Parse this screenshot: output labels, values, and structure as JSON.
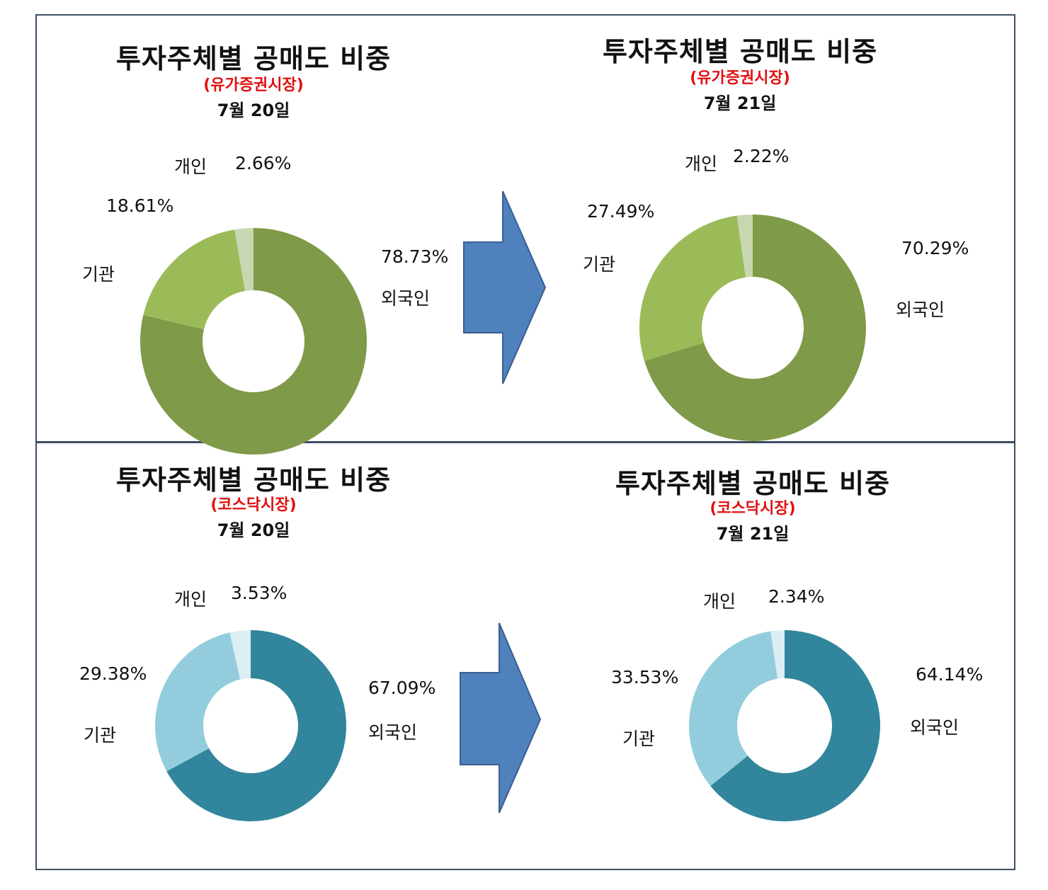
{
  "chart_data": [
    {
      "type": "pie",
      "title": "투자주체별 공매도 비중",
      "subtitle": "(유가증권시장)",
      "date": "7월 20일",
      "categories": [
        "외국인",
        "기관",
        "개인"
      ],
      "values": [
        78.73,
        18.61,
        2.66
      ],
      "value_labels": [
        "78.73%",
        "18.61%",
        "2.66%"
      ],
      "colors": [
        "#7f9a48",
        "#9bbb59",
        "#c7d7b0"
      ]
    },
    {
      "type": "pie",
      "title": "투자주체별 공매도 비중",
      "subtitle": "(유가증권시장)",
      "date": "7월 21일",
      "categories": [
        "외국인",
        "기관",
        "개인"
      ],
      "values": [
        70.29,
        27.49,
        2.22
      ],
      "value_labels": [
        "70.29%",
        "27.49%",
        "2.22%"
      ],
      "colors": [
        "#7f9a48",
        "#9bbb59",
        "#c7d7b0"
      ]
    },
    {
      "type": "pie",
      "title": "투자주체별 공매도 비중",
      "subtitle": "(코스닥시장)",
      "date": "7월 20일",
      "categories": [
        "외국인",
        "기관",
        "개인"
      ],
      "values": [
        67.09,
        29.38,
        3.53
      ],
      "value_labels": [
        "67.09%",
        "29.38%",
        "3.53%"
      ],
      "colors": [
        "#31859c",
        "#93cddd",
        "#dbeef4"
      ]
    },
    {
      "type": "pie",
      "title": "투자주체별 공매도 비중",
      "subtitle": "(코스닥시장)",
      "date": "7월 21일",
      "categories": [
        "외국인",
        "기관",
        "개인"
      ],
      "values": [
        64.14,
        33.53,
        2.34
      ],
      "value_labels": [
        "64.14%",
        "33.53%",
        "2.34%"
      ],
      "colors": [
        "#31859c",
        "#93cddd",
        "#dbeef4"
      ]
    }
  ],
  "arrow_color": "#4f81bd"
}
